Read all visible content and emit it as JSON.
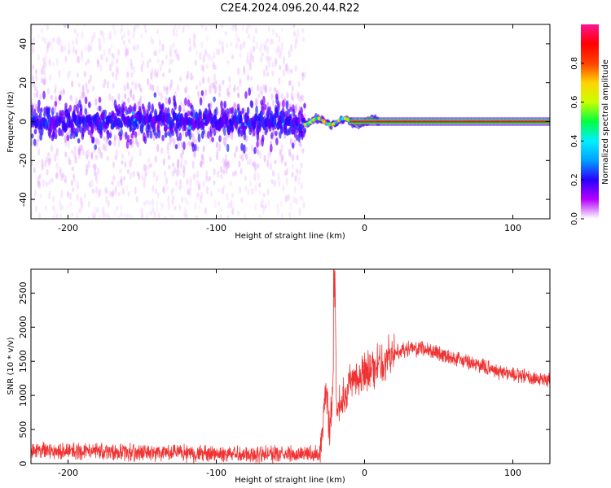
{
  "figure": {
    "title": "C2E4.2024.096.20.44.R22"
  },
  "chart_data": [
    {
      "type": "heatmap",
      "title": "C2E4.2024.096.20.44.R22",
      "xlabel": "Height of straight line (km)",
      "ylabel": "Frequency (Hz)",
      "xlim": [
        -225,
        125
      ],
      "ylim": [
        -50,
        50
      ],
      "x_ticks": [
        -200,
        -100,
        0,
        100
      ],
      "y_ticks": [
        -40,
        -20,
        0,
        20,
        40
      ],
      "grid": false,
      "colorbar": {
        "label": "Normalized spectral amplitude",
        "range": [
          0,
          1
        ],
        "ticks": [
          0.0,
          0.2,
          0.4,
          0.6,
          0.8
        ],
        "colormap": [
          "#ffffff",
          "#b400ff",
          "#2a00ff",
          "#00a0ff",
          "#00f0ff",
          "#00ff40",
          "#c8ff00",
          "#ffd400",
          "#ff4000",
          "#ff0000",
          "#ff1493"
        ]
      },
      "regions": [
        {
          "x_range": [
            -225,
            -40
          ],
          "description_values": {
            "core_freq_halfwidth_hz": 5,
            "max_freq_spread_hz": 50,
            "typical_amplitude": 0.15
          }
        },
        {
          "x_range": [
            -40,
            10
          ],
          "description_values": {
            "core_freq_halfwidth_hz": 2,
            "typical_amplitude": 0.4
          }
        },
        {
          "x_range": [
            -10,
            125
          ],
          "description_values": {
            "line_freq_hz": 0,
            "typical_amplitude": 0.95
          }
        }
      ]
    },
    {
      "type": "line",
      "xlabel": "Height of straight line (km)",
      "ylabel": "SNR (10 * v/v)",
      "xlim": [
        -225,
        125
      ],
      "ylim": [
        0,
        2850
      ],
      "x_ticks": [
        -200,
        -100,
        0,
        100
      ],
      "y_ticks": [
        0,
        500,
        1000,
        1500,
        2000,
        2500
      ],
      "grid": false,
      "series": [
        {
          "color": "#f03232",
          "x": [
            -225,
            -200,
            -175,
            -150,
            -125,
            -100,
            -75,
            -50,
            -30,
            -26,
            -24,
            -22,
            -21,
            -20,
            -19,
            -18,
            -15,
            -10,
            -5,
            0,
            5,
            10,
            15,
            20,
            25,
            30,
            40,
            50,
            60,
            70,
            80,
            90,
            100,
            110,
            125
          ],
          "values": [
            200,
            180,
            175,
            160,
            150,
            140,
            140,
            140,
            150,
            1100,
            500,
            700,
            1400,
            2850,
            900,
            800,
            950,
            1200,
            1300,
            1320,
            1380,
            1450,
            1550,
            1620,
            1660,
            1690,
            1680,
            1620,
            1550,
            1480,
            1420,
            1360,
            1310,
            1260,
            1230
          ],
          "noise_amplitude": 110
        }
      ]
    }
  ]
}
